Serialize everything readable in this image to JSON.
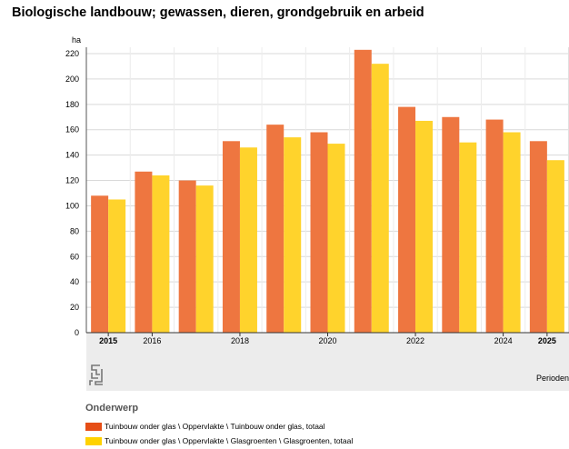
{
  "page": {
    "title": "Biologische landbouw; gewassen, dieren, grondgebruik en arbeid"
  },
  "chart_data": {
    "type": "bar",
    "title": "Biologische landbouw; gewassen, dieren, grondgebruik en arbeid",
    "ylabel": "ha",
    "xlabel": "Perioden",
    "ylim": [
      0,
      220
    ],
    "yticks": [
      0,
      20,
      40,
      60,
      80,
      100,
      120,
      140,
      160,
      180,
      200,
      220
    ],
    "categories": [
      "2015",
      "2016",
      "2017",
      "2018",
      "2019",
      "2020",
      "2021",
      "2022",
      "2023",
      "2024",
      "2025"
    ],
    "tick_labels": [
      "2015",
      "2016",
      "",
      "2018",
      "",
      "2020",
      "",
      "2022",
      "",
      "2024",
      "2025"
    ],
    "bold_ticks": [
      "2015",
      "2025"
    ],
    "series": [
      {
        "name": "Tuinbouw onder glas \\ Oppervlakte \\ Tuinbouw onder glas, totaal",
        "color": "#ee7640",
        "values": [
          108,
          127,
          120,
          151,
          164,
          158,
          223,
          178,
          170,
          168,
          151
        ]
      },
      {
        "name": "Tuinbouw onder glas \\ Oppervlakte \\ Glasgroenten \\ Glasgroenten, totaal",
        "color": "#ffd32c",
        "values": [
          105,
          124,
          116,
          146,
          154,
          149,
          212,
          167,
          150,
          158,
          136
        ]
      }
    ],
    "legend_title": "Onderwerp",
    "legend_colors": [
      "#e64e16",
      "#ffd200"
    ]
  }
}
